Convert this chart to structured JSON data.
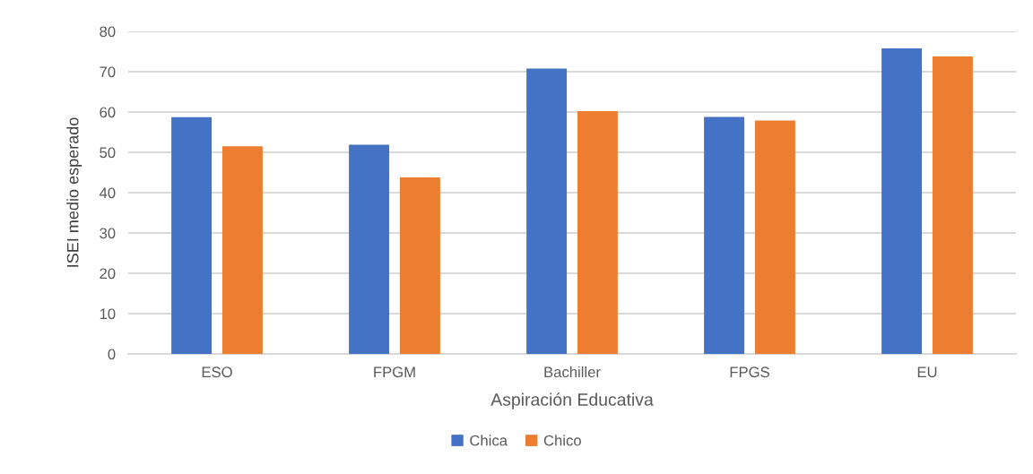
{
  "chart_data": {
    "type": "bar",
    "xlabel": "Aspiración Educativa",
    "ylabel": "ISEI medio esperado",
    "categories": [
      "ESO",
      "FPGM",
      "Bachiller",
      "FPGS",
      "EU"
    ],
    "series": [
      {
        "name": "Chica",
        "color": "#4472c4",
        "values": [
          58.7,
          51.9,
          70.8,
          58.8,
          75.8
        ]
      },
      {
        "name": "Chico",
        "color": "#ed7d31",
        "values": [
          51.5,
          43.8,
          60.2,
          57.9,
          73.8
        ]
      }
    ],
    "ylim": [
      0,
      80
    ],
    "yticks": [
      0,
      10,
      20,
      30,
      40,
      50,
      60,
      70,
      80
    ],
    "grid": "y",
    "legend": "bottom"
  }
}
